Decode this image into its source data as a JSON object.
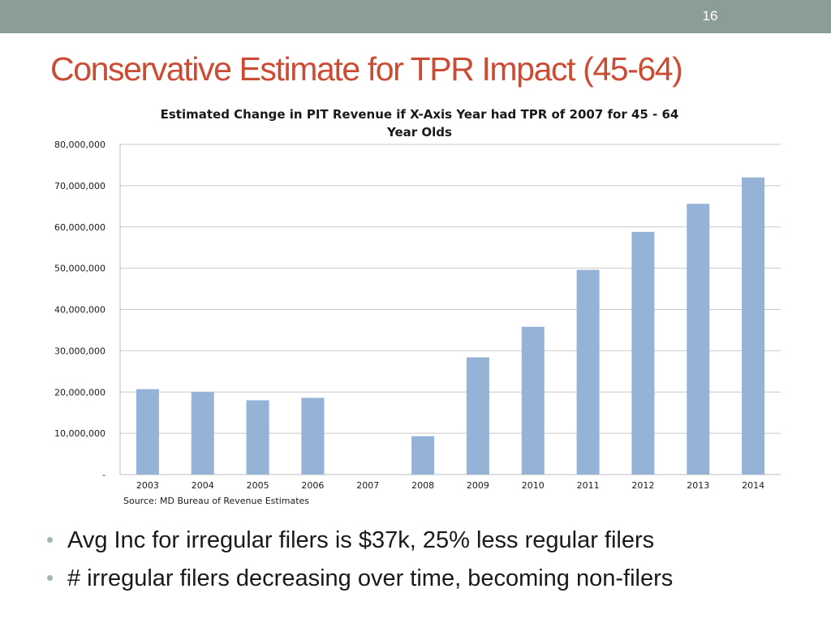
{
  "slide": {
    "number": "16",
    "title": "Conservative Estimate for TPR Impact (45-64)",
    "accent_color": "#cc4b33",
    "bar_color": "#95b3d7",
    "top_bar_color": "#8a9e95"
  },
  "chart_data": {
    "type": "bar",
    "title_lines": [
      "Estimated Change in PIT Revenue if X-Axis Year had TPR of 2007 for 45 - 64",
      "Year Olds"
    ],
    "categories": [
      "2003",
      "2004",
      "2005",
      "2006",
      "2007",
      "2008",
      "2009",
      "2010",
      "2011",
      "2012",
      "2013",
      "2014"
    ],
    "values": [
      20700000,
      20000000,
      18000000,
      18600000,
      0,
      9300000,
      28400000,
      35800000,
      49600000,
      58800000,
      65600000,
      72000000
    ],
    "ylim": [
      0,
      80000000
    ],
    "yticks": [
      0,
      10000000,
      20000000,
      30000000,
      40000000,
      50000000,
      60000000,
      70000000,
      80000000
    ],
    "ytick_labels": [
      "-",
      "10,000,000",
      "20,000,000",
      "30,000,000",
      "40,000,000",
      "50,000,000",
      "60,000,000",
      "70,000,000",
      "80,000,000"
    ],
    "source": "Source: MD Bureau of Revenue Estimates",
    "grid": true,
    "legend": "none"
  },
  "bullets": [
    "Avg Inc for irregular filers is $37k, 25% less regular filers",
    "# irregular filers decreasing over time, becoming non-filers"
  ]
}
